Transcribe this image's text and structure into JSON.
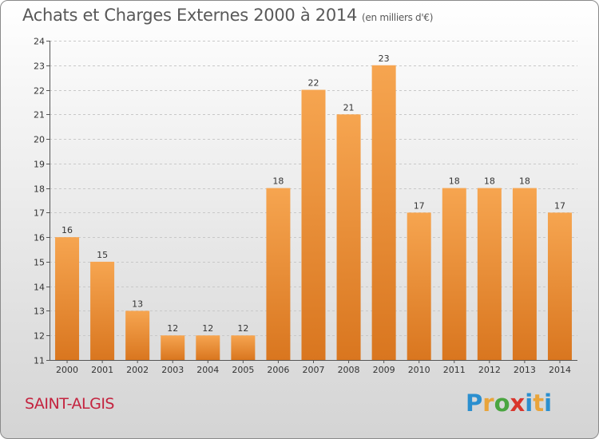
{
  "page": {
    "title": "Achats et Charges Externes 2000 à 2014",
    "unit": "(en milliers d'€)",
    "commune": "SAINT-ALGIS",
    "logo": {
      "text": "Proxiti",
      "letters": [
        "P",
        "r",
        "o",
        "x",
        "i",
        "t",
        "i"
      ]
    }
  },
  "colors": {
    "bar_top": "#f6a550",
    "bar_bottom": "#d9761f",
    "commune_text": "#c4233f",
    "axis_text": "#333333"
  },
  "chart_data": {
    "type": "bar",
    "title": "Achats et Charges Externes 2000 à 2014",
    "subtitle": "(en milliers d'€)",
    "xlabel": "",
    "ylabel": "",
    "categories": [
      "2000",
      "2001",
      "2002",
      "2003",
      "2004",
      "2005",
      "2006",
      "2007",
      "2008",
      "2009",
      "2010",
      "2011",
      "2012",
      "2013",
      "2014"
    ],
    "values": [
      16,
      15,
      13,
      12,
      12,
      12,
      18,
      22,
      21,
      23,
      17,
      18,
      18,
      18,
      17
    ],
    "ylim": [
      11,
      24
    ],
    "yticks": [
      11,
      12,
      13,
      14,
      15,
      16,
      17,
      18,
      19,
      20,
      21,
      22,
      23,
      24
    ],
    "grid": true,
    "legend": "none"
  }
}
